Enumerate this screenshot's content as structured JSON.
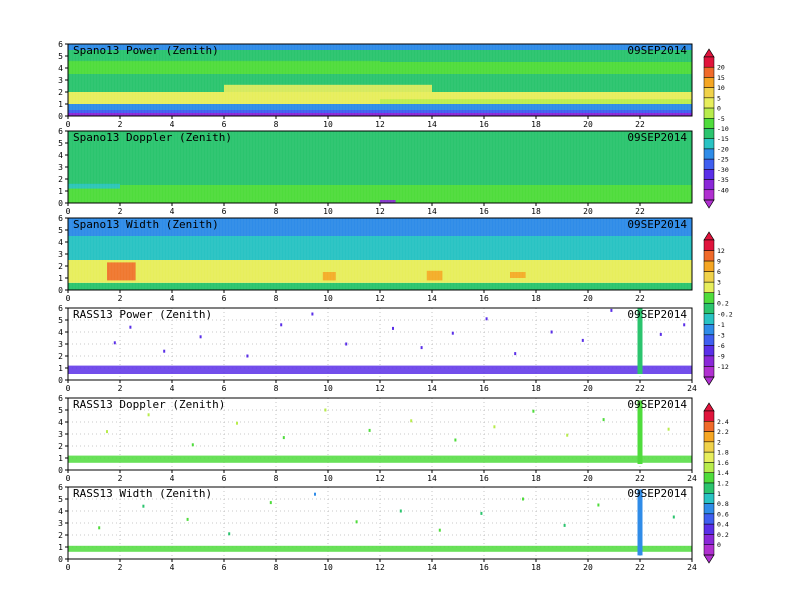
{
  "date_label": "09SEP2014",
  "x_ticks": [
    0,
    2,
    4,
    6,
    8,
    10,
    12,
    14,
    16,
    18,
    20,
    22,
    24
  ],
  "y_ticks": [
    0,
    1,
    2,
    3,
    4,
    5,
    6
  ],
  "colorbars": [
    {
      "name": "power",
      "labels": [
        "20",
        "15",
        "10",
        "5",
        "0",
        "-5",
        "-10",
        "-15",
        "-20",
        "-25",
        "-30",
        "-35",
        "-40"
      ],
      "colors": [
        "#e0143c",
        "#f06a2a",
        "#f5a623",
        "#f0d24a",
        "#e7ee5c",
        "#b8ec4c",
        "#4fdc3c",
        "#2bc46e",
        "#29c3c3",
        "#2f8ce8",
        "#3f5ff0",
        "#5a2fe8",
        "#8a28d8",
        "#b030d0"
      ]
    },
    {
      "name": "width",
      "labels": [
        "12",
        "9",
        "6",
        "3",
        "1",
        "0.2",
        "-0.2",
        "-1",
        "-3",
        "-6",
        "-9",
        "-12"
      ],
      "colors": [
        "#e0143c",
        "#f06a2a",
        "#f5a623",
        "#f0d24a",
        "#e7ee5c",
        "#4fdc3c",
        "#2bc46e",
        "#29c3c3",
        "#2f8ce8",
        "#3f5ff0",
        "#5a2fe8",
        "#8a28d8",
        "#b030d0"
      ]
    },
    {
      "name": "rass",
      "labels": [
        "2.4",
        "2.2",
        "2",
        "1.8",
        "1.6",
        "1.4",
        "1.2",
        "1",
        "0.8",
        "0.6",
        "0.4",
        "0.2",
        "0"
      ],
      "colors": [
        "#e0143c",
        "#f06a2a",
        "#f5a623",
        "#f0d24a",
        "#e7ee5c",
        "#b8ec4c",
        "#4fdc3c",
        "#2bc46e",
        "#29c3c3",
        "#2f8ce8",
        "#3f5ff0",
        "#5a2fe8",
        "#8a28d8",
        "#b030d0"
      ]
    }
  ],
  "chart_data": [
    {
      "type": "heatmap",
      "title": "Spano13 Power (Zenith)",
      "date": "09SEP2014",
      "xlim": [
        0,
        24
      ],
      "ylim": [
        0,
        6
      ],
      "x_ticks": [
        0,
        2,
        4,
        6,
        8,
        10,
        12,
        14,
        16,
        18,
        20,
        22
      ],
      "y_ticks": [
        0,
        1,
        2,
        3,
        4,
        5,
        6
      ],
      "colorbar": "power",
      "bands": [
        {
          "y": [
            0.0,
            0.25
          ],
          "value": -40
        },
        {
          "y": [
            0.25,
            0.5
          ],
          "value": -30
        },
        {
          "y": [
            0.5,
            1.0
          ],
          "value": -25
        },
        {
          "y": [
            1.0,
            2.0
          ],
          "value": 0
        },
        {
          "y": [
            2.0,
            3.5
          ],
          "value": -15
        },
        {
          "y": [
            3.5,
            4.5
          ],
          "value": -10
        },
        {
          "y": [
            4.5,
            5.5
          ],
          "value": -15
        },
        {
          "y": [
            5.5,
            6.0
          ],
          "value": -25
        }
      ],
      "features": [
        {
          "x": [
            6.0,
            14.0
          ],
          "y": [
            2.0,
            2.6
          ],
          "value": 0
        },
        {
          "x": [
            0.0,
            12.0
          ],
          "y": [
            4.0,
            4.6
          ],
          "value": -10
        },
        {
          "x": [
            12.0,
            24.0
          ],
          "y": [
            1.0,
            1.4
          ],
          "value": -5
        },
        {
          "x": [
            11.5,
            12.5
          ],
          "y": [
            0.0,
            0.2
          ],
          "value": -40
        }
      ]
    },
    {
      "type": "heatmap",
      "title": "Spano13 Doppler (Zenith)",
      "date": "09SEP2014",
      "xlim": [
        0,
        24
      ],
      "ylim": [
        0,
        6
      ],
      "x_ticks": [
        0,
        2,
        4,
        6,
        8,
        10,
        12,
        14,
        16,
        18,
        20,
        22
      ],
      "y_ticks": [
        0,
        1,
        2,
        3,
        4,
        5,
        6
      ],
      "colorbar": "width",
      "bands": [
        {
          "y": [
            0.0,
            1.5
          ],
          "value": 0.2
        },
        {
          "y": [
            1.5,
            6.0
          ],
          "value": -0.2
        }
      ],
      "features": [
        {
          "x": [
            0.0,
            2.0
          ],
          "y": [
            1.2,
            1.6
          ],
          "value": -1
        },
        {
          "x": [
            12.0,
            12.6
          ],
          "y": [
            0.0,
            0.25
          ],
          "value": -12
        }
      ]
    },
    {
      "type": "heatmap",
      "title": "Spano13 Width (Zenith)",
      "date": "09SEP2014",
      "xlim": [
        0,
        24
      ],
      "ylim": [
        0,
        6
      ],
      "x_ticks": [
        0,
        2,
        4,
        6,
        8,
        10,
        12,
        14,
        16,
        18,
        20,
        22
      ],
      "y_ticks": [
        0,
        1,
        2,
        3,
        4,
        5,
        6
      ],
      "colorbar": "width",
      "bands": [
        {
          "y": [
            0.0,
            0.6
          ],
          "value": -0.2
        },
        {
          "y": [
            0.6,
            2.5
          ],
          "value": 1
        },
        {
          "y": [
            2.5,
            4.5
          ],
          "value": -1
        },
        {
          "y": [
            4.5,
            6.0
          ],
          "value": -3
        }
      ],
      "features": [
        {
          "x": [
            1.5,
            2.6
          ],
          "y": [
            0.8,
            2.3
          ],
          "value": 9
        },
        {
          "x": [
            9.8,
            10.3
          ],
          "y": [
            0.8,
            1.5
          ],
          "value": 6
        },
        {
          "x": [
            13.8,
            14.4
          ],
          "y": [
            0.8,
            1.6
          ],
          "value": 6
        },
        {
          "x": [
            17.0,
            17.6
          ],
          "y": [
            1.0,
            1.5
          ],
          "value": 6
        }
      ]
    },
    {
      "type": "scatter",
      "title": "RASS13 Power (Zenith)",
      "date": "09SEP2014",
      "xlim": [
        0,
        24
      ],
      "ylim": [
        0,
        6
      ],
      "x_ticks": [
        0,
        2,
        4,
        6,
        8,
        10,
        12,
        14,
        16,
        18,
        20,
        22,
        24
      ],
      "y_ticks": [
        0,
        1,
        2,
        3,
        4,
        5,
        6
      ],
      "colorbar": "rass",
      "main_band": {
        "y": [
          0.5,
          1.2
        ],
        "value": 0.2
      },
      "column": {
        "x": 22.0,
        "y": [
          0.5,
          6.0
        ],
        "value": 1
      },
      "scatter": [
        {
          "x": 1.8,
          "y": 3.1,
          "value": 0.2
        },
        {
          "x": 2.4,
          "y": 4.4,
          "value": 0.2
        },
        {
          "x": 3.7,
          "y": 2.4,
          "value": 0.2
        },
        {
          "x": 5.1,
          "y": 3.6,
          "value": 0.2
        },
        {
          "x": 6.9,
          "y": 2.0,
          "value": 0.2
        },
        {
          "x": 8.2,
          "y": 4.6,
          "value": 0.2
        },
        {
          "x": 9.4,
          "y": 5.5,
          "value": 0.2
        },
        {
          "x": 10.7,
          "y": 3.0,
          "value": 0.2
        },
        {
          "x": 12.5,
          "y": 4.3,
          "value": 0.2
        },
        {
          "x": 13.6,
          "y": 2.7,
          "value": 0.2
        },
        {
          "x": 14.8,
          "y": 3.9,
          "value": 0.2
        },
        {
          "x": 16.1,
          "y": 5.1,
          "value": 0.2
        },
        {
          "x": 17.2,
          "y": 2.2,
          "value": 0.2
        },
        {
          "x": 18.6,
          "y": 4.0,
          "value": 0.2
        },
        {
          "x": 19.8,
          "y": 3.3,
          "value": 0.2
        },
        {
          "x": 20.9,
          "y": 5.8,
          "value": 0.2
        },
        {
          "x": 22.8,
          "y": 3.8,
          "value": 0.2
        },
        {
          "x": 23.7,
          "y": 4.6,
          "value": 0.2
        }
      ]
    },
    {
      "type": "scatter",
      "title": "RASS13 Doppler (Zenith)",
      "date": "09SEP2014",
      "xlim": [
        0,
        24
      ],
      "ylim": [
        0,
        6
      ],
      "x_ticks": [
        0,
        2,
        4,
        6,
        8,
        10,
        12,
        14,
        16,
        18,
        20,
        22,
        24
      ],
      "y_ticks": [
        0,
        1,
        2,
        3,
        4,
        5,
        6
      ],
      "colorbar": "rass",
      "main_band": {
        "y": [
          0.6,
          1.2
        ],
        "value": 1.2
      },
      "column": {
        "x": 22.0,
        "y": [
          0.5,
          5.8
        ],
        "value": 1.2
      },
      "scatter": [
        {
          "x": 1.5,
          "y": 3.2,
          "value": 1.4
        },
        {
          "x": 3.1,
          "y": 4.6,
          "value": 1.4
        },
        {
          "x": 4.8,
          "y": 2.1,
          "value": 1.2
        },
        {
          "x": 6.5,
          "y": 3.9,
          "value": 1.4
        },
        {
          "x": 8.3,
          "y": 2.7,
          "value": 1.2
        },
        {
          "x": 9.9,
          "y": 5.0,
          "value": 1.4
        },
        {
          "x": 11.6,
          "y": 3.3,
          "value": 1.2
        },
        {
          "x": 13.2,
          "y": 4.1,
          "value": 1.4
        },
        {
          "x": 14.9,
          "y": 2.5,
          "value": 1.2
        },
        {
          "x": 16.4,
          "y": 3.6,
          "value": 1.4
        },
        {
          "x": 17.9,
          "y": 4.9,
          "value": 1.2
        },
        {
          "x": 19.2,
          "y": 2.9,
          "value": 1.4
        },
        {
          "x": 20.6,
          "y": 4.2,
          "value": 1.2
        },
        {
          "x": 23.1,
          "y": 3.4,
          "value": 1.4
        }
      ]
    },
    {
      "type": "scatter",
      "title": "RASS13 Width (Zenith)",
      "date": "09SEP2014",
      "xlim": [
        0,
        24
      ],
      "ylim": [
        0,
        6
      ],
      "x_ticks": [
        0,
        2,
        4,
        6,
        8,
        10,
        12,
        14,
        16,
        18,
        20,
        22,
        24
      ],
      "y_ticks": [
        0,
        1,
        2,
        3,
        4,
        5,
        6
      ],
      "colorbar": "rass",
      "main_band": {
        "y": [
          0.6,
          1.1
        ],
        "value": 1.2
      },
      "column": {
        "x": 22.0,
        "y": [
          0.3,
          5.8
        ],
        "value": 0.6
      },
      "scatter": [
        {
          "x": 1.2,
          "y": 2.6,
          "value": 1.2
        },
        {
          "x": 2.9,
          "y": 4.4,
          "value": 1.0
        },
        {
          "x": 4.6,
          "y": 3.3,
          "value": 1.2
        },
        {
          "x": 6.2,
          "y": 2.1,
          "value": 1.0
        },
        {
          "x": 7.8,
          "y": 4.7,
          "value": 1.2
        },
        {
          "x": 9.5,
          "y": 5.4,
          "value": 0.6
        },
        {
          "x": 11.1,
          "y": 3.1,
          "value": 1.2
        },
        {
          "x": 12.8,
          "y": 4.0,
          "value": 1.0
        },
        {
          "x": 14.3,
          "y": 2.4,
          "value": 1.2
        },
        {
          "x": 15.9,
          "y": 3.8,
          "value": 1.0
        },
        {
          "x": 17.5,
          "y": 5.0,
          "value": 1.2
        },
        {
          "x": 19.1,
          "y": 2.8,
          "value": 1.0
        },
        {
          "x": 20.4,
          "y": 4.5,
          "value": 1.2
        },
        {
          "x": 23.3,
          "y": 3.5,
          "value": 1.0
        }
      ]
    }
  ]
}
